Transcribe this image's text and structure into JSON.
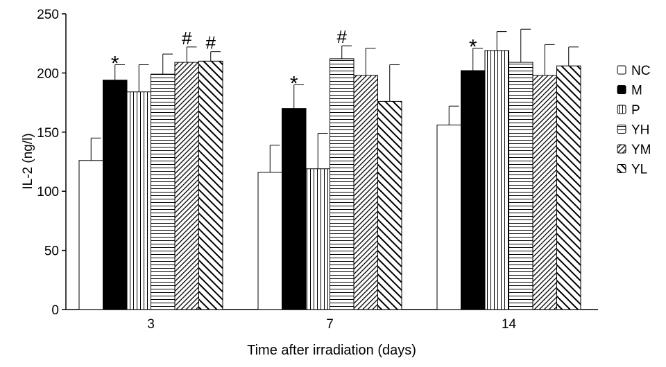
{
  "chart_data": {
    "type": "bar",
    "title": "",
    "xlabel": "Time after irradiation (days)",
    "ylabel": "IL-2 (ng/l)",
    "ylim": [
      0,
      250
    ],
    "yticks": [
      0,
      50,
      100,
      150,
      200,
      250
    ],
    "categories": [
      "3",
      "7",
      "14"
    ],
    "legend_position": "right",
    "series": [
      {
        "name": "NC",
        "pattern": "white",
        "values": [
          126,
          116,
          156
        ],
        "errors": [
          19,
          23,
          16
        ]
      },
      {
        "name": "M",
        "pattern": "black",
        "values": [
          194,
          170,
          202
        ],
        "errors": [
          13,
          20,
          19
        ]
      },
      {
        "name": "P",
        "pattern": "vertical",
        "values": [
          184,
          119,
          219
        ],
        "errors": [
          23,
          30,
          16
        ]
      },
      {
        "name": "YH",
        "pattern": "horizontal",
        "values": [
          199,
          212,
          209
        ],
        "errors": [
          17,
          11,
          28
        ]
      },
      {
        "name": "YM",
        "pattern": "diagonal",
        "values": [
          209,
          198,
          198
        ],
        "errors": [
          13,
          23,
          26
        ]
      },
      {
        "name": "YL",
        "pattern": "backdiagonal",
        "values": [
          210,
          176,
          206
        ],
        "errors": [
          8,
          31,
          16
        ]
      }
    ],
    "annotations": [
      {
        "category": "3",
        "series": "M",
        "text": "*"
      },
      {
        "category": "3",
        "series": "YM",
        "text": "#"
      },
      {
        "category": "3",
        "series": "YL",
        "text": "#"
      },
      {
        "category": "7",
        "series": "M",
        "text": "*"
      },
      {
        "category": "7",
        "series": "YH",
        "text": "#"
      },
      {
        "category": "14",
        "series": "M",
        "text": "*"
      }
    ]
  }
}
